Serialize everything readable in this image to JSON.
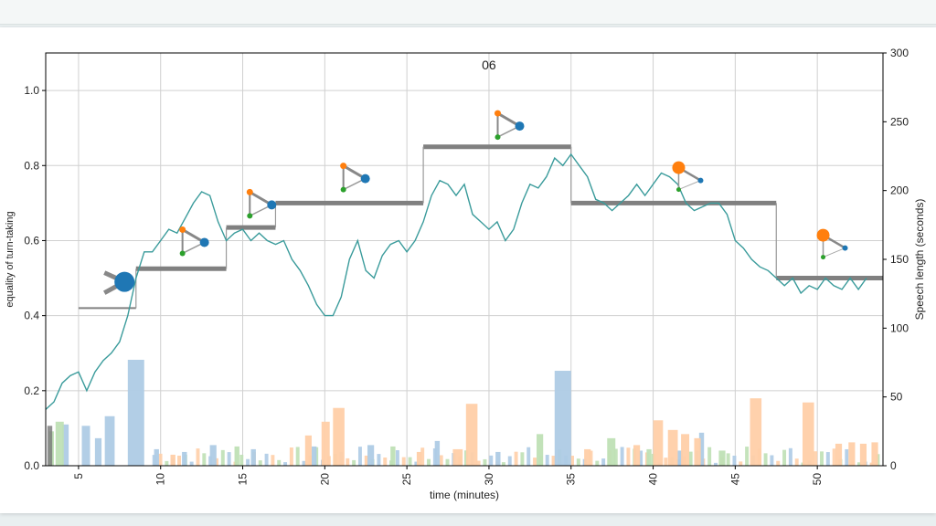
{
  "chart_data": {
    "type": "line",
    "title": "06",
    "xlabel": "time (minutes)",
    "ylabel_left": "equality of turn-taking",
    "ylabel_right": "Speech length (seconds)",
    "xlim": [
      3,
      54
    ],
    "ylim_left": [
      0,
      1.1
    ],
    "ylim_right": [
      0,
      300
    ],
    "x_ticks": [
      5,
      10,
      15,
      20,
      25,
      30,
      35,
      40,
      45,
      50
    ],
    "y_ticks_left": [
      0.0,
      0.2,
      0.4,
      0.6,
      0.8,
      1.0
    ],
    "y_ticks_right": [
      0,
      50,
      100,
      150,
      200,
      250,
      300
    ],
    "grid": true,
    "colors": {
      "line": "#3a9b9b",
      "steps": "#808080",
      "blue": "#1f77b4",
      "orange": "#ff7f0e",
      "green": "#2ca02c",
      "bar_blue": "#aecbe5",
      "bar_orange": "#ffcfa8",
      "bar_green": "#bfe0b5"
    },
    "line_series": {
      "x": [
        3.0,
        3.5,
        4.0,
        4.5,
        5.0,
        5.5,
        6.0,
        6.5,
        7.0,
        7.5,
        8.0,
        8.5,
        9.0,
        9.5,
        10.0,
        10.5,
        11.0,
        11.5,
        12.0,
        12.5,
        13.0,
        13.5,
        14.0,
        14.5,
        15.0,
        15.5,
        16.0,
        16.5,
        17.0,
        17.5,
        18.0,
        18.5,
        19.0,
        19.5,
        20.0,
        20.5,
        21.0,
        21.5,
        22.0,
        22.5,
        23.0,
        23.5,
        24.0,
        24.5,
        25.0,
        25.5,
        26.0,
        26.5,
        27.0,
        27.5,
        28.0,
        28.5,
        29.0,
        29.5,
        30.0,
        30.5,
        31.0,
        31.5,
        32.0,
        32.5,
        33.0,
        33.5,
        34.0,
        34.5,
        35.0,
        35.5,
        36.0,
        36.5,
        37.0,
        37.5,
        38.0,
        38.5,
        39.0,
        39.5,
        40.0,
        40.5,
        41.0,
        41.5,
        42.0,
        42.5,
        43.0,
        43.5,
        44.0,
        44.5,
        45.0,
        45.5,
        46.0,
        46.5,
        47.0,
        47.5,
        48.0,
        48.5,
        49.0,
        49.5,
        50.0,
        50.5,
        51.0,
        51.5,
        52.0,
        52.5,
        53.0
      ],
      "y": [
        0.15,
        0.17,
        0.22,
        0.24,
        0.25,
        0.2,
        0.25,
        0.28,
        0.3,
        0.33,
        0.4,
        0.5,
        0.57,
        0.57,
        0.6,
        0.63,
        0.62,
        0.66,
        0.7,
        0.73,
        0.72,
        0.65,
        0.6,
        0.62,
        0.63,
        0.6,
        0.62,
        0.6,
        0.59,
        0.6,
        0.55,
        0.52,
        0.48,
        0.43,
        0.4,
        0.4,
        0.45,
        0.55,
        0.6,
        0.52,
        0.5,
        0.56,
        0.59,
        0.6,
        0.57,
        0.6,
        0.65,
        0.72,
        0.76,
        0.75,
        0.72,
        0.75,
        0.67,
        0.65,
        0.63,
        0.65,
        0.6,
        0.63,
        0.7,
        0.75,
        0.74,
        0.77,
        0.82,
        0.8,
        0.83,
        0.8,
        0.77,
        0.71,
        0.7,
        0.68,
        0.7,
        0.72,
        0.75,
        0.72,
        0.75,
        0.78,
        0.77,
        0.75,
        0.7,
        0.68,
        0.69,
        0.7,
        0.7,
        0.67,
        0.6,
        0.58,
        0.55,
        0.53,
        0.52,
        0.5,
        0.48,
        0.5,
        0.46,
        0.48,
        0.47,
        0.5,
        0.48,
        0.47,
        0.5,
        0.47,
        0.5
      ]
    },
    "step_series": [
      {
        "x0": 5.0,
        "x1": 8.5,
        "y": 0.42,
        "width": "thin"
      },
      {
        "x0": 8.5,
        "x1": 14.0,
        "y": 0.525,
        "width": "thick"
      },
      {
        "x0": 14.0,
        "x1": 17.0,
        "y": 0.635,
        "width": "thick"
      },
      {
        "x0": 17.0,
        "x1": 26.0,
        "y": 0.7,
        "width": "thick"
      },
      {
        "x0": 26.0,
        "x1": 35.0,
        "y": 0.85,
        "width": "thick"
      },
      {
        "x0": 35.0,
        "x1": 47.5,
        "y": 0.7,
        "width": "thick"
      },
      {
        "x0": 47.5,
        "x1": 54.0,
        "y": 0.5,
        "width": "thick"
      }
    ],
    "bars": {
      "blue": [
        {
          "x": 4.0,
          "w": 0.4,
          "v": 30
        },
        {
          "x": 5.2,
          "w": 0.5,
          "v": 29
        },
        {
          "x": 6.0,
          "w": 0.4,
          "v": 20
        },
        {
          "x": 6.6,
          "w": 0.6,
          "v": 36
        },
        {
          "x": 8.0,
          "w": 1.0,
          "v": 77
        },
        {
          "x": 9.6,
          "w": 0.3,
          "v": 12
        },
        {
          "x": 11.3,
          "w": 0.3,
          "v": 10
        },
        {
          "x": 13.0,
          "w": 0.4,
          "v": 15
        },
        {
          "x": 15.5,
          "w": 0.3,
          "v": 12
        },
        {
          "x": 19.2,
          "w": 0.3,
          "v": 14
        },
        {
          "x": 22.6,
          "w": 0.4,
          "v": 15
        },
        {
          "x": 26.7,
          "w": 0.3,
          "v": 18
        },
        {
          "x": 30.4,
          "w": 0.3,
          "v": 10
        },
        {
          "x": 34.0,
          "w": 1.0,
          "v": 69
        },
        {
          "x": 41.5,
          "w": 0.3,
          "v": 11
        },
        {
          "x": 42.8,
          "w": 0.3,
          "v": 24
        }
      ],
      "orange": [
        {
          "x": 10.6,
          "w": 0.3,
          "v": 8
        },
        {
          "x": 18.8,
          "w": 0.4,
          "v": 22
        },
        {
          "x": 19.8,
          "w": 0.5,
          "v": 32
        },
        {
          "x": 20.5,
          "w": 0.7,
          "v": 42
        },
        {
          "x": 25.6,
          "w": 0.3,
          "v": 10
        },
        {
          "x": 27.8,
          "w": 0.6,
          "v": 12
        },
        {
          "x": 28.6,
          "w": 0.7,
          "v": 45
        },
        {
          "x": 35.8,
          "w": 0.4,
          "v": 12
        },
        {
          "x": 38.8,
          "w": 0.4,
          "v": 15
        },
        {
          "x": 40.0,
          "w": 0.6,
          "v": 33
        },
        {
          "x": 40.9,
          "w": 0.6,
          "v": 26
        },
        {
          "x": 41.7,
          "w": 0.5,
          "v": 23
        },
        {
          "x": 42.5,
          "w": 0.4,
          "v": 20
        },
        {
          "x": 45.9,
          "w": 0.7,
          "v": 49
        },
        {
          "x": 49.1,
          "w": 0.7,
          "v": 46
        },
        {
          "x": 51.1,
          "w": 0.4,
          "v": 16
        },
        {
          "x": 51.9,
          "w": 0.4,
          "v": 17
        },
        {
          "x": 52.6,
          "w": 0.4,
          "v": 16
        },
        {
          "x": 53.3,
          "w": 0.4,
          "v": 17
        }
      ],
      "green": [
        {
          "x": 3.2,
          "w": 0.3,
          "v": 25
        },
        {
          "x": 3.6,
          "w": 0.5,
          "v": 32
        },
        {
          "x": 14.5,
          "w": 0.3,
          "v": 14
        },
        {
          "x": 24.0,
          "w": 0.3,
          "v": 14
        },
        {
          "x": 32.9,
          "w": 0.4,
          "v": 23
        },
        {
          "x": 37.2,
          "w": 0.5,
          "v": 20
        },
        {
          "x": 39.6,
          "w": 0.3,
          "v": 12
        },
        {
          "x": 44.0,
          "w": 0.4,
          "v": 11
        }
      ],
      "gray": [
        {
          "x": 3.1,
          "w": 0.3,
          "v": 29
        }
      ]
    },
    "small_bars": {
      "colors": [
        "blue",
        "orange",
        "green"
      ],
      "x_range": [
        9.5,
        54.0
      ],
      "step": 0.38,
      "count": 117
    },
    "glyphs": [
      {
        "x": 7.8,
        "y": 0.49,
        "style": "large-blue"
      },
      {
        "x": 12.0,
        "y": 0.6,
        "style": "tri"
      },
      {
        "x": 16.1,
        "y": 0.7,
        "style": "tri"
      },
      {
        "x": 21.8,
        "y": 0.77,
        "style": "tri"
      },
      {
        "x": 31.2,
        "y": 0.91,
        "style": "tri"
      },
      {
        "x": 42.0,
        "y": 0.77,
        "style": "orange-large"
      },
      {
        "x": 50.8,
        "y": 0.59,
        "style": "orange-large"
      }
    ]
  }
}
